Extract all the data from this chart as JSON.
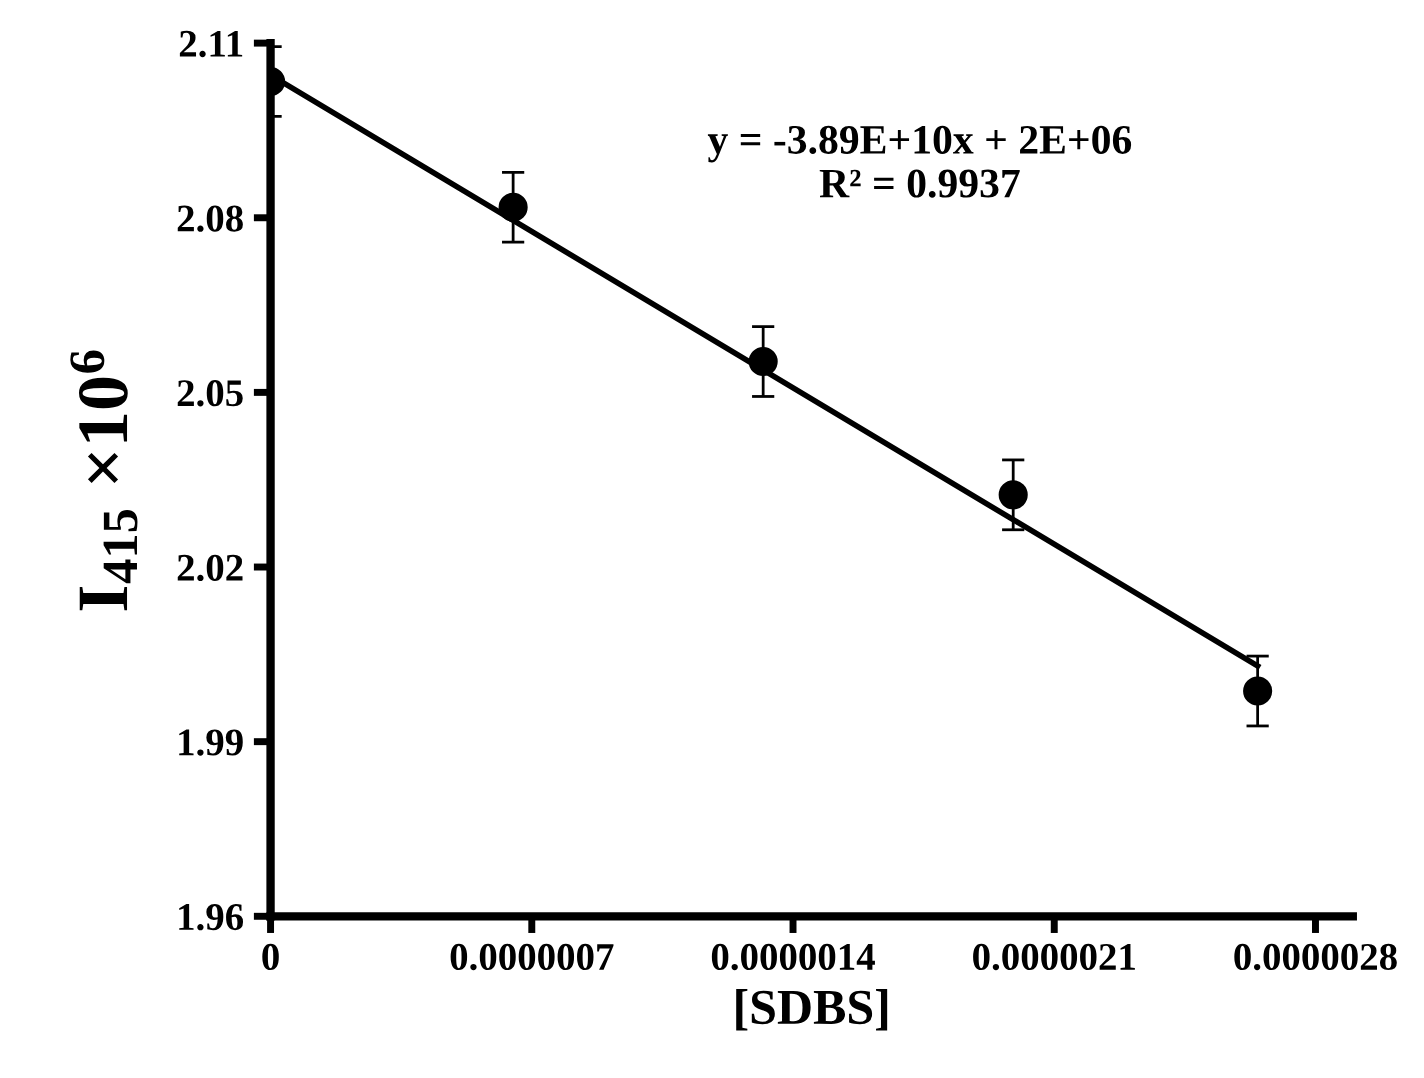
{
  "chart_data": {
    "type": "scatter",
    "xlabel": "[SDBS]",
    "ylabel": "I$_{415}$ ×10$^{6}$",
    "annotations": [
      "y = -3.89E+10x + 2E+06\nR² = 0.9937"
    ],
    "series": [
      {
        "color": "#000000",
        "marker": "circle",
        "x": [
          0,
          6.5e-07,
          1.32e-06,
          1.99e-06,
          2.645e-06
        ],
        "values": [
          2.1034,
          2.0818,
          2.0553,
          2.0324,
          1.9987
        ],
        "errors": [
          0.006,
          0.006,
          0.006,
          0.006,
          0.006
        ]
      },
      {
        "type": "line",
        "color": "#000000",
        "line_style": "solid",
        "x": [
          0,
          2.645e-06
        ],
        "values": [
          2.1045,
          2.003
        ]
      }
    ],
    "xlim": [
      0,
      2.9e-06
    ],
    "ylim": [
      1.96,
      2.11
    ],
    "xticks": [
      {
        "value": 0,
        "label": "0"
      },
      {
        "value": 7e-07,
        "label": "0.0000007"
      },
      {
        "value": 1.4e-06,
        "label": "0.0000014"
      },
      {
        "value": 2.1e-06,
        "label": "0.0000021"
      },
      {
        "value": 2.8e-06,
        "label": "0.0000028"
      }
    ],
    "yticks": [
      1.96,
      1.99,
      2.02,
      2.05,
      2.08,
      2.11
    ],
    "grid": false,
    "legend": false
  }
}
